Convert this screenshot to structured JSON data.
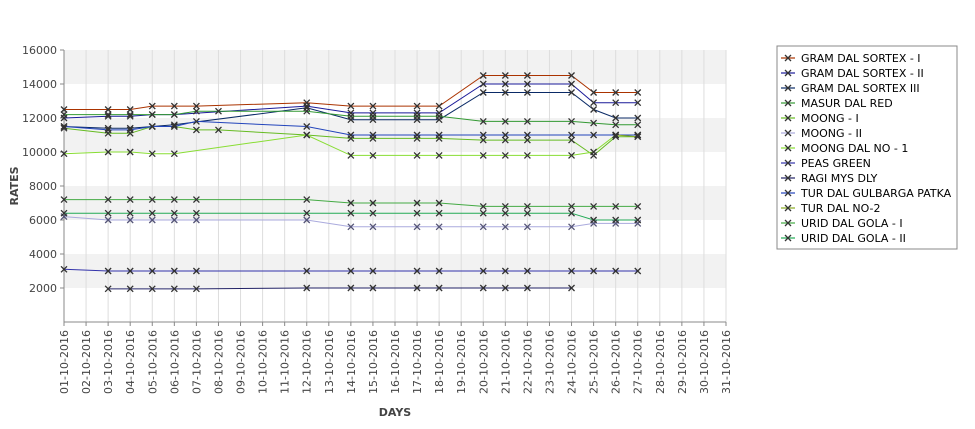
{
  "chart_data": {
    "type": "line",
    "xlabel": "DAYS",
    "ylabel": "RATES",
    "ylim": [
      0,
      16000
    ],
    "yticks": [
      2000,
      4000,
      6000,
      8000,
      10000,
      12000,
      14000,
      16000
    ],
    "y_tick_labels": [
      "2000",
      "4000",
      "6000",
      "8000",
      "10000",
      "12000",
      "14000",
      "16000"
    ],
    "grid": "alternating horizontal bands",
    "legend_position": "right",
    "categories": [
      "01-10-2016",
      "02-10-2016",
      "03-10-2016",
      "04-10-2016",
      "05-10-2016",
      "06-10-2016",
      "07-10-2016",
      "08-10-2016",
      "09-10-2016",
      "10-10-2016",
      "11-10-2016",
      "12-10-2016",
      "13-10-2016",
      "14-10-2016",
      "15-10-2016",
      "16-10-2016",
      "17-10-2016",
      "18-10-2016",
      "19-10-2016",
      "20-10-2016",
      "21-10-2016",
      "22-10-2016",
      "23-10-2016",
      "24-10-2016",
      "25-10-2016",
      "26-10-2016",
      "27-10-2016",
      "28-10-2016",
      "29-10-2016",
      "30-10-2016",
      "31-10-2016"
    ],
    "series": [
      {
        "name": "GRAM DAL SORTEX  - I",
        "color": "#aa3300",
        "values": [
          12500,
          null,
          12500,
          12500,
          12700,
          12700,
          12700,
          null,
          null,
          null,
          null,
          12900,
          null,
          12700,
          12700,
          null,
          12700,
          12700,
          null,
          14500,
          14500,
          14500,
          null,
          14500,
          13500,
          13500,
          13500,
          null,
          null,
          null,
          null
        ]
      },
      {
        "name": "GRAM DAL SORTEX - II",
        "color": "#1a1a99",
        "values": [
          12000,
          null,
          12100,
          12100,
          12200,
          12200,
          null,
          null,
          null,
          null,
          null,
          12700,
          null,
          12300,
          12300,
          null,
          12300,
          12300,
          null,
          14000,
          14000,
          14000,
          null,
          14000,
          12900,
          12900,
          12900,
          null,
          null,
          null,
          null
        ]
      },
      {
        "name": "GRAM DAL SORTEX III",
        "color": "#0a2a66",
        "values": [
          11500,
          null,
          11400,
          11400,
          11500,
          11600,
          null,
          null,
          null,
          null,
          null,
          12600,
          null,
          11900,
          11900,
          null,
          11900,
          11900,
          null,
          13500,
          13500,
          13500,
          null,
          13500,
          12500,
          12000,
          12000,
          null,
          null,
          null,
          null
        ]
      },
      {
        "name": "MASUR DAL RED",
        "color": "#339933",
        "values": [
          12200,
          null,
          12200,
          12200,
          12200,
          12200,
          12400,
          12400,
          null,
          null,
          null,
          12400,
          null,
          12100,
          12100,
          null,
          12100,
          12100,
          null,
          11800,
          11800,
          11800,
          null,
          11800,
          11700,
          11600,
          11600,
          null,
          null,
          null,
          null
        ]
      },
      {
        "name": "MOONG - I",
        "color": "#66bb22",
        "values": [
          11400,
          null,
          11100,
          11100,
          11500,
          11500,
          11300,
          11300,
          null,
          null,
          null,
          11000,
          null,
          10800,
          10800,
          null,
          10800,
          10800,
          null,
          10700,
          10700,
          10700,
          null,
          10700,
          9800,
          10900,
          10900,
          null,
          null,
          null,
          null
        ]
      },
      {
        "name": "MOONG - II",
        "color": "#aaaadd",
        "values": [
          6200,
          null,
          6000,
          6000,
          6000,
          6000,
          6000,
          null,
          null,
          null,
          null,
          6000,
          null,
          5600,
          5600,
          null,
          5600,
          5600,
          null,
          5600,
          5600,
          5600,
          null,
          5600,
          5800,
          5800,
          5800,
          null,
          null,
          null,
          null
        ]
      },
      {
        "name": "MOONG DAL NO - 1",
        "color": "#88dd33",
        "values": [
          9900,
          null,
          10000,
          10000,
          9900,
          9900,
          null,
          null,
          null,
          null,
          null,
          11000,
          null,
          9800,
          9800,
          null,
          9800,
          9800,
          null,
          9800,
          9800,
          9800,
          null,
          9800,
          10000,
          11000,
          11000,
          null,
          null,
          null,
          null
        ]
      },
      {
        "name": "PEAS GREEN",
        "color": "#3333aa",
        "values": [
          3100,
          null,
          3000,
          3000,
          3000,
          3000,
          3000,
          null,
          null,
          null,
          null,
          3000,
          null,
          3000,
          3000,
          null,
          3000,
          3000,
          null,
          3000,
          3000,
          3000,
          null,
          3000,
          3000,
          3000,
          3000,
          null,
          null,
          null,
          null
        ]
      },
      {
        "name": "RAGI MYS DLY",
        "color": "#222266",
        "values": [
          null,
          null,
          1950,
          1950,
          1950,
          1950,
          1950,
          null,
          null,
          null,
          null,
          2000,
          null,
          2000,
          2000,
          null,
          2000,
          2000,
          null,
          2000,
          2000,
          2000,
          null,
          2000,
          null,
          null,
          null,
          null,
          null,
          null,
          null
        ]
      },
      {
        "name": "TUR DAL GULBARGA PATKA",
        "color": "#2244bb",
        "values": [
          11500,
          null,
          11300,
          11300,
          11500,
          11500,
          11800,
          null,
          null,
          null,
          null,
          11500,
          null,
          11000,
          11000,
          null,
          11000,
          11000,
          null,
          11000,
          11000,
          11000,
          null,
          11000,
          11000,
          11000,
          11000,
          null,
          null,
          null,
          null
        ]
      },
      {
        "name": "TUR DAL NO-2",
        "color": "#88aa22",
        "values": [
          null,
          null,
          null,
          null,
          null,
          null,
          null,
          null,
          null,
          null,
          null,
          null,
          null,
          null,
          null,
          null,
          null,
          null,
          null,
          null,
          null,
          null,
          null,
          null,
          null,
          11000,
          10900,
          null,
          null,
          null,
          null
        ]
      },
      {
        "name": "URID DAL GOLA - I",
        "color": "#44aa44",
        "values": [
          7200,
          null,
          7200,
          7200,
          7200,
          7200,
          7200,
          null,
          null,
          null,
          null,
          7200,
          null,
          7000,
          7000,
          null,
          7000,
          7000,
          null,
          6800,
          6800,
          6800,
          null,
          6800,
          6800,
          6800,
          6800,
          null,
          null,
          null,
          null
        ]
      },
      {
        "name": "URID DAL GOLA - II",
        "color": "#22aa55",
        "values": [
          6400,
          null,
          6400,
          6400,
          6400,
          6400,
          6400,
          null,
          null,
          null,
          null,
          6400,
          null,
          6400,
          6400,
          null,
          6400,
          6400,
          null,
          6400,
          6400,
          6400,
          null,
          6400,
          6000,
          6000,
          6000,
          null,
          null,
          null,
          null
        ]
      }
    ]
  }
}
